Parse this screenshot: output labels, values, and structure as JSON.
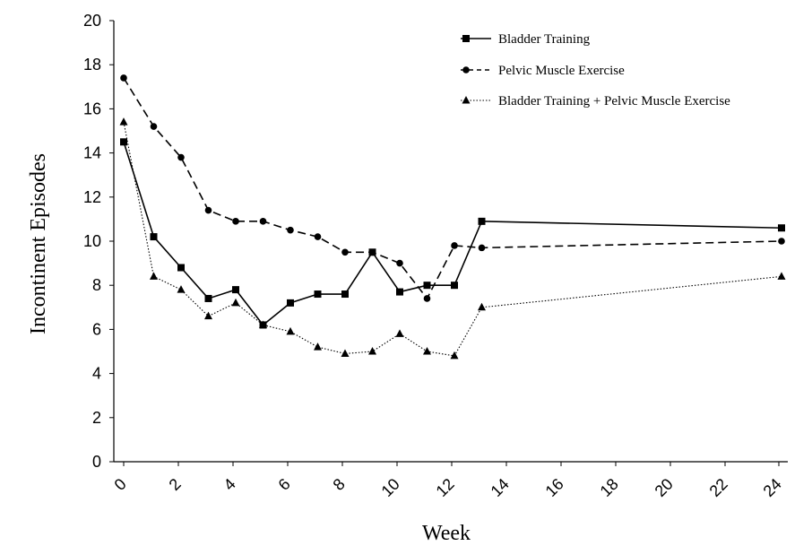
{
  "chart_data": {
    "type": "line",
    "xlabel": "Week",
    "ylabel": "Incontinent Episodes",
    "ylim": [
      0,
      20
    ],
    "y_ticks": [
      "0",
      "2",
      "4",
      "6",
      "8",
      "10",
      "12",
      "14",
      "16",
      "18",
      "20"
    ],
    "x_ticks": [
      "0",
      "2",
      "4",
      "6",
      "8",
      "10",
      "12",
      "14",
      "16",
      "18",
      "20",
      "22",
      "24"
    ],
    "x_tick_values": [
      0,
      2,
      4,
      6,
      8,
      10,
      12,
      14,
      16,
      18,
      20,
      22,
      24
    ],
    "grid": false,
    "legend_position": "top-right",
    "series": [
      {
        "name": "Bladder Training",
        "line_style": "solid",
        "marker": "square",
        "x": [
          0,
          1,
          2,
          3,
          4,
          5,
          6,
          7,
          8,
          9,
          10,
          11,
          12,
          13,
          24
        ],
        "values": [
          14.5,
          10.2,
          8.8,
          7.4,
          7.8,
          6.2,
          7.2,
          7.6,
          7.6,
          9.5,
          7.7,
          8.0,
          8.0,
          10.9,
          10.6
        ]
      },
      {
        "name": "Pelvic Muscle Exercise",
        "line_style": "dashed",
        "marker": "circle",
        "x": [
          0,
          1,
          2,
          3,
          4,
          5,
          6,
          7,
          8,
          9,
          10,
          11,
          12,
          13,
          24
        ],
        "values": [
          17.4,
          15.2,
          13.8,
          11.4,
          10.9,
          10.9,
          10.5,
          10.2,
          9.5,
          9.5,
          9.0,
          7.4,
          9.8,
          9.7,
          10.0
        ]
      },
      {
        "name": "Bladder Training + Pelvic Muscle Exercise",
        "line_style": "dotted",
        "marker": "triangle",
        "x": [
          0,
          1,
          2,
          3,
          4,
          5,
          6,
          7,
          8,
          9,
          10,
          11,
          12,
          13,
          24
        ],
        "values": [
          15.4,
          8.4,
          7.8,
          6.6,
          7.2,
          6.2,
          5.9,
          5.2,
          4.9,
          5.0,
          5.8,
          5.0,
          4.8,
          7.0,
          8.4
        ]
      }
    ]
  }
}
